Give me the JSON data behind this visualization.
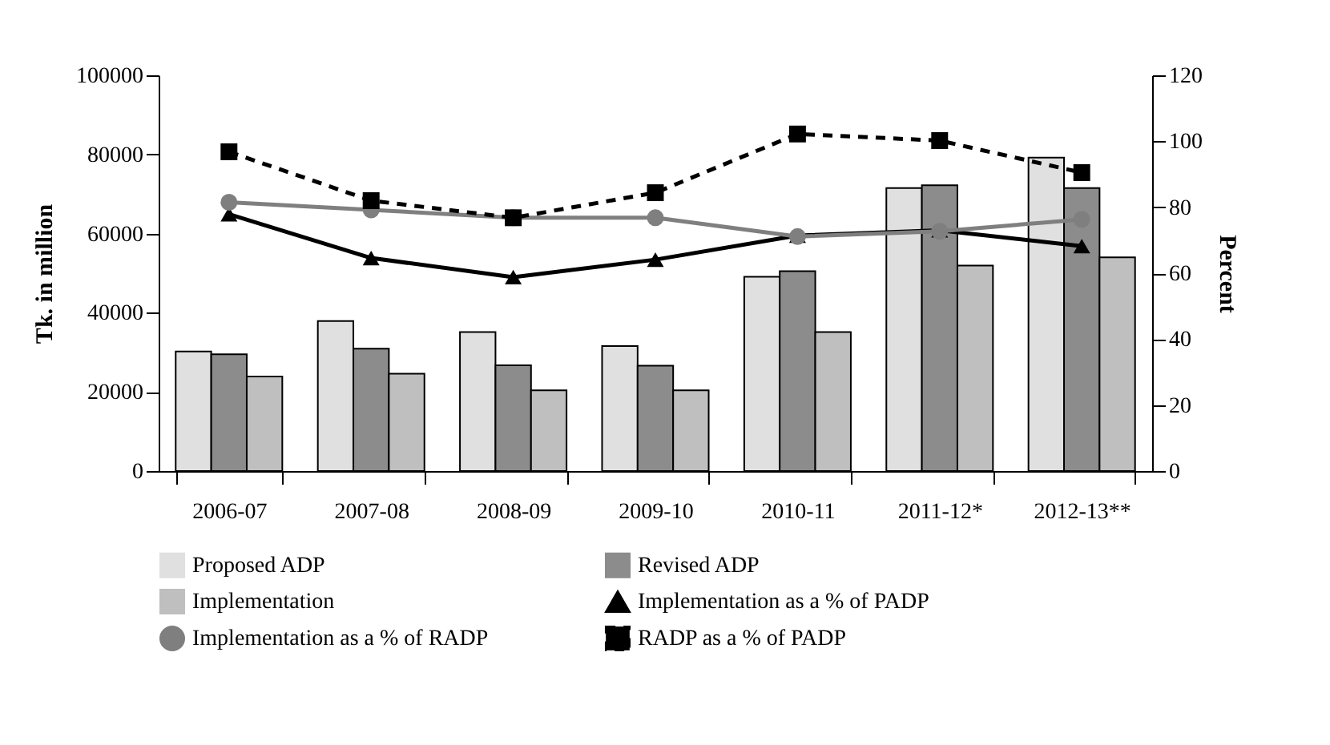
{
  "chart_data": {
    "type": "bar",
    "ylabel": "Tk. in million",
    "y2label": "Percent",
    "categories": [
      "2006-07",
      "2007-08",
      "2008-09",
      "2009-10",
      "2010-11",
      "2011-12*",
      "2012-13**"
    ],
    "ylim": [
      0,
      100000
    ],
    "yticks": [
      0,
      20000,
      40000,
      60000,
      80000,
      100000
    ],
    "y2lim": [
      0,
      120
    ],
    "y2ticks": [
      0,
      20,
      40,
      60,
      80,
      100,
      120
    ],
    "grid": false,
    "legend": "bottom",
    "series": [
      {
        "name": "Proposed ADP",
        "color": "#e0e0e0",
        "values": [
          30200,
          37900,
          35100,
          31600,
          49100,
          71500,
          79200
        ]
      },
      {
        "name": "Revised ADP",
        "color": "#8c8c8c",
        "values": [
          29500,
          30900,
          26700,
          26600,
          50500,
          72200,
          71500
        ]
      },
      {
        "name": "Implementation",
        "color": "#bfbfbf",
        "values": [
          23900,
          24600,
          20400,
          20400,
          35100,
          51900,
          54000
        ]
      },
      {
        "name": "Implementation as a % of PADP",
        "type": "line",
        "axis": "y2",
        "color": "#000000",
        "marker": "triangle",
        "line_style": "solid",
        "values": [
          77.9,
          64.6,
          58.8,
          64.1,
          71.4,
          73,
          68.2
        ]
      },
      {
        "name": "Implementation as a % of RADP",
        "type": "line",
        "axis": "y2",
        "color": "#7f7f7f",
        "marker": "circle",
        "line_style": "solid",
        "values": [
          81.5,
          79.2,
          76.8,
          76.8,
          71.1,
          72.7,
          76.3
        ]
      },
      {
        "name": "RADP as a % of PADP",
        "type": "line",
        "axis": "y2",
        "color": "#000000",
        "marker": "square",
        "line_style": "dashed",
        "values": [
          96.8,
          82,
          76.8,
          84.4,
          102.2,
          100.2,
          90.5
        ]
      }
    ]
  }
}
